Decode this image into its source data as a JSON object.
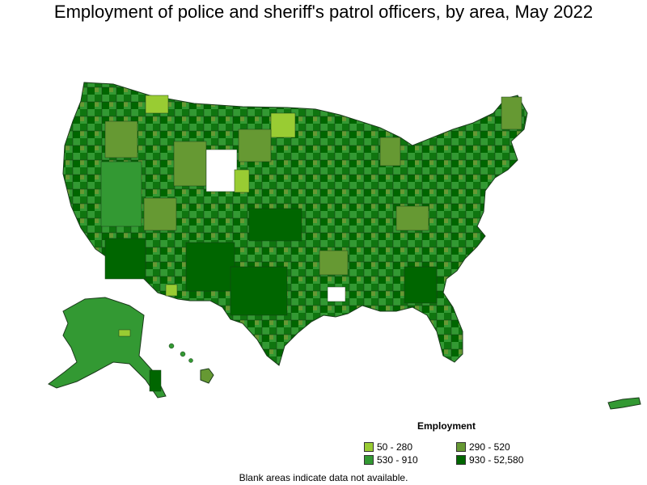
{
  "title": "Employment of police and sheriff's patrol officers, by area, May 2022",
  "legend": {
    "title": "Employment",
    "items": [
      {
        "label": "50 - 280",
        "color": "#99cc33"
      },
      {
        "label": "290 - 520",
        "color": "#669933"
      },
      {
        "label": "530 - 910",
        "color": "#339933"
      },
      {
        "label": "930 - 52,580",
        "color": "#006600"
      }
    ]
  },
  "note": "Blank areas indicate data not available."
}
